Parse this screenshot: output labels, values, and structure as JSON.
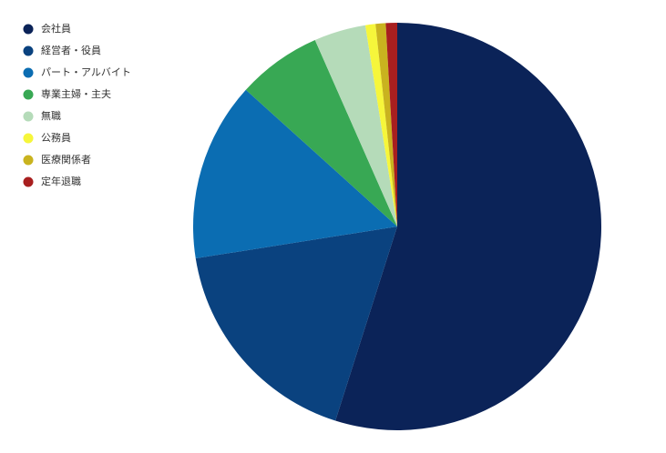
{
  "chart_data": {
    "type": "pie",
    "categories": [
      "会社員",
      "経営者・役員",
      "パート・アルバイト",
      "専業主婦・主夫",
      "無職",
      "公務員",
      "医療関係者",
      "定年退職"
    ],
    "values": [
      54.9,
      17.6,
      14.2,
      6.7,
      4.1,
      0.8,
      0.8,
      0.9
    ],
    "colors": [
      "#0b2358",
      "#0a427f",
      "#0b6db2",
      "#38a854",
      "#b5dbb9",
      "#f6f63b",
      "#c9b31f",
      "#a81f1f"
    ],
    "legend": "top-left"
  }
}
